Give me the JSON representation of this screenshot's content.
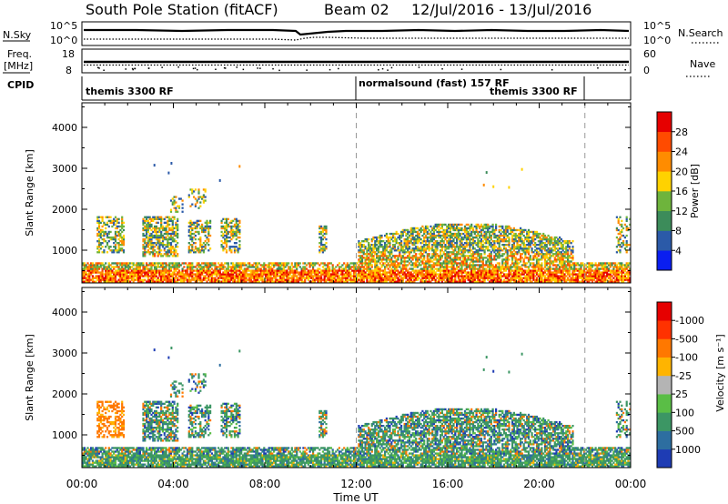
{
  "header": {
    "station": "South Pole Station (fitACF)",
    "beam": "Beam 02",
    "date_range": "12/Jul/2016 - 13/Jul/2016"
  },
  "nsky_panel": {
    "left_label": "N.Sky",
    "right_label": "N.Search",
    "left_ticks": [
      "10^5",
      "10^0"
    ],
    "right_ticks": [
      "10^5",
      "10^0"
    ]
  },
  "freq_panel": {
    "left_label_1": "Freq.",
    "left_label_2": "[MHz]",
    "right_label": "Nave",
    "left_ticks": [
      "18",
      "8"
    ],
    "right_ticks": [
      "60",
      "0"
    ]
  },
  "cpid_panel": {
    "label": "CPID",
    "modes": [
      {
        "name": "themis 3300 RF",
        "start_hour": 0
      },
      {
        "name": "normalsound (fast) 157 RF",
        "start_hour": 12
      },
      {
        "name": "themis 3300 RF",
        "start_hour": 18
      }
    ]
  },
  "chart_data": [
    {
      "type": "heatmap",
      "xlabel": "",
      "ylabel": "Slant Range [km]",
      "x_range_hours": [
        0,
        24
      ],
      "ylim": [
        200,
        4600
      ],
      "yticks": [
        1000,
        2000,
        3000,
        4000
      ],
      "colorbar_label": "Power [dB]",
      "colorbar_ticks": [
        "4",
        "8",
        "12",
        "16",
        "20",
        "24",
        "28"
      ],
      "colorbar_colors": [
        "#0a1ef0",
        "#2b5aa8",
        "#3c8c5a",
        "#6eb43c",
        "#ffd200",
        "#ff8c00",
        "#ff4b00",
        "#e60000"
      ],
      "dashed_lines_hours": [
        12,
        22
      ]
    },
    {
      "type": "heatmap",
      "xlabel": "Time UT",
      "ylabel": "Slant Range [km]",
      "x_range_hours": [
        0,
        24
      ],
      "ylim": [
        200,
        4600
      ],
      "yticks": [
        1000,
        2000,
        3000,
        4000
      ],
      "xticks": [
        "00:00",
        "04:00",
        "08:00",
        "12:00",
        "16:00",
        "20:00",
        "00:00"
      ],
      "colorbar_label": "Velocity [m s⁻¹]",
      "colorbar_ticks": [
        "1000",
        "500",
        "100",
        "25",
        "-25",
        "-100",
        "-500",
        "-1000"
      ],
      "colorbar_colors": [
        "#1e3cb4",
        "#2d6ea0",
        "#3c9664",
        "#5abe46",
        "#b4b4b4",
        "#ffb400",
        "#ff7800",
        "#ff3200",
        "#e60000"
      ],
      "dashed_lines_hours": [
        12,
        22
      ]
    }
  ]
}
